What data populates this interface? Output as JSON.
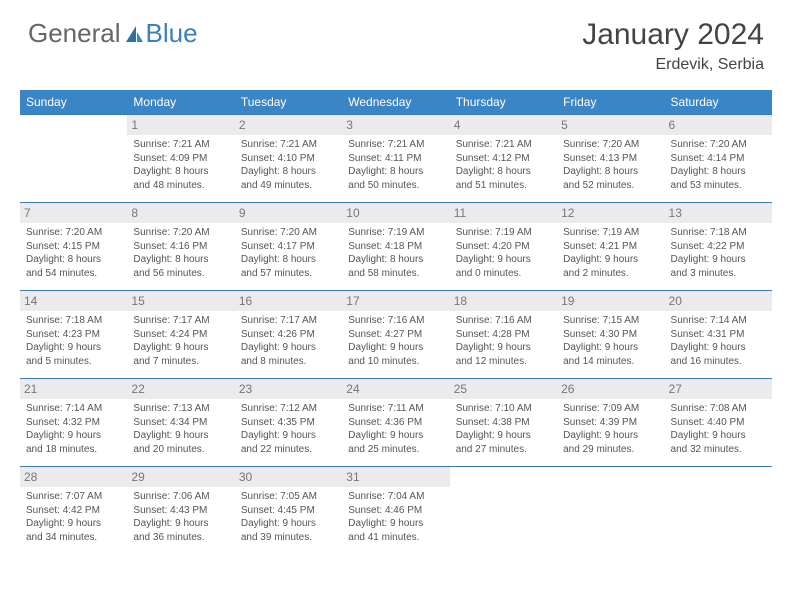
{
  "logo": {
    "part1": "General",
    "part2": "Blue"
  },
  "title": "January 2024",
  "location": "Erdevik, Serbia",
  "colors": {
    "header_bg": "#3a85c6",
    "header_text": "#ffffff",
    "daynum_bg": "#ebebeb",
    "daynum_text": "#777777",
    "divider": "#3a7bb5",
    "body_text": "#555555",
    "logo_grey": "#666666",
    "logo_blue": "#3a7fbf"
  },
  "type": "table",
  "weekdays": [
    "Sunday",
    "Monday",
    "Tuesday",
    "Wednesday",
    "Thursday",
    "Friday",
    "Saturday"
  ],
  "weeks": [
    [
      null,
      {
        "n": "1",
        "sr": "Sunrise: 7:21 AM",
        "ss": "Sunset: 4:09 PM",
        "d1": "Daylight: 8 hours",
        "d2": "and 48 minutes."
      },
      {
        "n": "2",
        "sr": "Sunrise: 7:21 AM",
        "ss": "Sunset: 4:10 PM",
        "d1": "Daylight: 8 hours",
        "d2": "and 49 minutes."
      },
      {
        "n": "3",
        "sr": "Sunrise: 7:21 AM",
        "ss": "Sunset: 4:11 PM",
        "d1": "Daylight: 8 hours",
        "d2": "and 50 minutes."
      },
      {
        "n": "4",
        "sr": "Sunrise: 7:21 AM",
        "ss": "Sunset: 4:12 PM",
        "d1": "Daylight: 8 hours",
        "d2": "and 51 minutes."
      },
      {
        "n": "5",
        "sr": "Sunrise: 7:20 AM",
        "ss": "Sunset: 4:13 PM",
        "d1": "Daylight: 8 hours",
        "d2": "and 52 minutes."
      },
      {
        "n": "6",
        "sr": "Sunrise: 7:20 AM",
        "ss": "Sunset: 4:14 PM",
        "d1": "Daylight: 8 hours",
        "d2": "and 53 minutes."
      }
    ],
    [
      {
        "n": "7",
        "sr": "Sunrise: 7:20 AM",
        "ss": "Sunset: 4:15 PM",
        "d1": "Daylight: 8 hours",
        "d2": "and 54 minutes."
      },
      {
        "n": "8",
        "sr": "Sunrise: 7:20 AM",
        "ss": "Sunset: 4:16 PM",
        "d1": "Daylight: 8 hours",
        "d2": "and 56 minutes."
      },
      {
        "n": "9",
        "sr": "Sunrise: 7:20 AM",
        "ss": "Sunset: 4:17 PM",
        "d1": "Daylight: 8 hours",
        "d2": "and 57 minutes."
      },
      {
        "n": "10",
        "sr": "Sunrise: 7:19 AM",
        "ss": "Sunset: 4:18 PM",
        "d1": "Daylight: 8 hours",
        "d2": "and 58 minutes."
      },
      {
        "n": "11",
        "sr": "Sunrise: 7:19 AM",
        "ss": "Sunset: 4:20 PM",
        "d1": "Daylight: 9 hours",
        "d2": "and 0 minutes."
      },
      {
        "n": "12",
        "sr": "Sunrise: 7:19 AM",
        "ss": "Sunset: 4:21 PM",
        "d1": "Daylight: 9 hours",
        "d2": "and 2 minutes."
      },
      {
        "n": "13",
        "sr": "Sunrise: 7:18 AM",
        "ss": "Sunset: 4:22 PM",
        "d1": "Daylight: 9 hours",
        "d2": "and 3 minutes."
      }
    ],
    [
      {
        "n": "14",
        "sr": "Sunrise: 7:18 AM",
        "ss": "Sunset: 4:23 PM",
        "d1": "Daylight: 9 hours",
        "d2": "and 5 minutes."
      },
      {
        "n": "15",
        "sr": "Sunrise: 7:17 AM",
        "ss": "Sunset: 4:24 PM",
        "d1": "Daylight: 9 hours",
        "d2": "and 7 minutes."
      },
      {
        "n": "16",
        "sr": "Sunrise: 7:17 AM",
        "ss": "Sunset: 4:26 PM",
        "d1": "Daylight: 9 hours",
        "d2": "and 8 minutes."
      },
      {
        "n": "17",
        "sr": "Sunrise: 7:16 AM",
        "ss": "Sunset: 4:27 PM",
        "d1": "Daylight: 9 hours",
        "d2": "and 10 minutes."
      },
      {
        "n": "18",
        "sr": "Sunrise: 7:16 AM",
        "ss": "Sunset: 4:28 PM",
        "d1": "Daylight: 9 hours",
        "d2": "and 12 minutes."
      },
      {
        "n": "19",
        "sr": "Sunrise: 7:15 AM",
        "ss": "Sunset: 4:30 PM",
        "d1": "Daylight: 9 hours",
        "d2": "and 14 minutes."
      },
      {
        "n": "20",
        "sr": "Sunrise: 7:14 AM",
        "ss": "Sunset: 4:31 PM",
        "d1": "Daylight: 9 hours",
        "d2": "and 16 minutes."
      }
    ],
    [
      {
        "n": "21",
        "sr": "Sunrise: 7:14 AM",
        "ss": "Sunset: 4:32 PM",
        "d1": "Daylight: 9 hours",
        "d2": "and 18 minutes."
      },
      {
        "n": "22",
        "sr": "Sunrise: 7:13 AM",
        "ss": "Sunset: 4:34 PM",
        "d1": "Daylight: 9 hours",
        "d2": "and 20 minutes."
      },
      {
        "n": "23",
        "sr": "Sunrise: 7:12 AM",
        "ss": "Sunset: 4:35 PM",
        "d1": "Daylight: 9 hours",
        "d2": "and 22 minutes."
      },
      {
        "n": "24",
        "sr": "Sunrise: 7:11 AM",
        "ss": "Sunset: 4:36 PM",
        "d1": "Daylight: 9 hours",
        "d2": "and 25 minutes."
      },
      {
        "n": "25",
        "sr": "Sunrise: 7:10 AM",
        "ss": "Sunset: 4:38 PM",
        "d1": "Daylight: 9 hours",
        "d2": "and 27 minutes."
      },
      {
        "n": "26",
        "sr": "Sunrise: 7:09 AM",
        "ss": "Sunset: 4:39 PM",
        "d1": "Daylight: 9 hours",
        "d2": "and 29 minutes."
      },
      {
        "n": "27",
        "sr": "Sunrise: 7:08 AM",
        "ss": "Sunset: 4:40 PM",
        "d1": "Daylight: 9 hours",
        "d2": "and 32 minutes."
      }
    ],
    [
      {
        "n": "28",
        "sr": "Sunrise: 7:07 AM",
        "ss": "Sunset: 4:42 PM",
        "d1": "Daylight: 9 hours",
        "d2": "and 34 minutes."
      },
      {
        "n": "29",
        "sr": "Sunrise: 7:06 AM",
        "ss": "Sunset: 4:43 PM",
        "d1": "Daylight: 9 hours",
        "d2": "and 36 minutes."
      },
      {
        "n": "30",
        "sr": "Sunrise: 7:05 AM",
        "ss": "Sunset: 4:45 PM",
        "d1": "Daylight: 9 hours",
        "d2": "and 39 minutes."
      },
      {
        "n": "31",
        "sr": "Sunrise: 7:04 AM",
        "ss": "Sunset: 4:46 PM",
        "d1": "Daylight: 9 hours",
        "d2": "and 41 minutes."
      },
      null,
      null,
      null
    ]
  ]
}
